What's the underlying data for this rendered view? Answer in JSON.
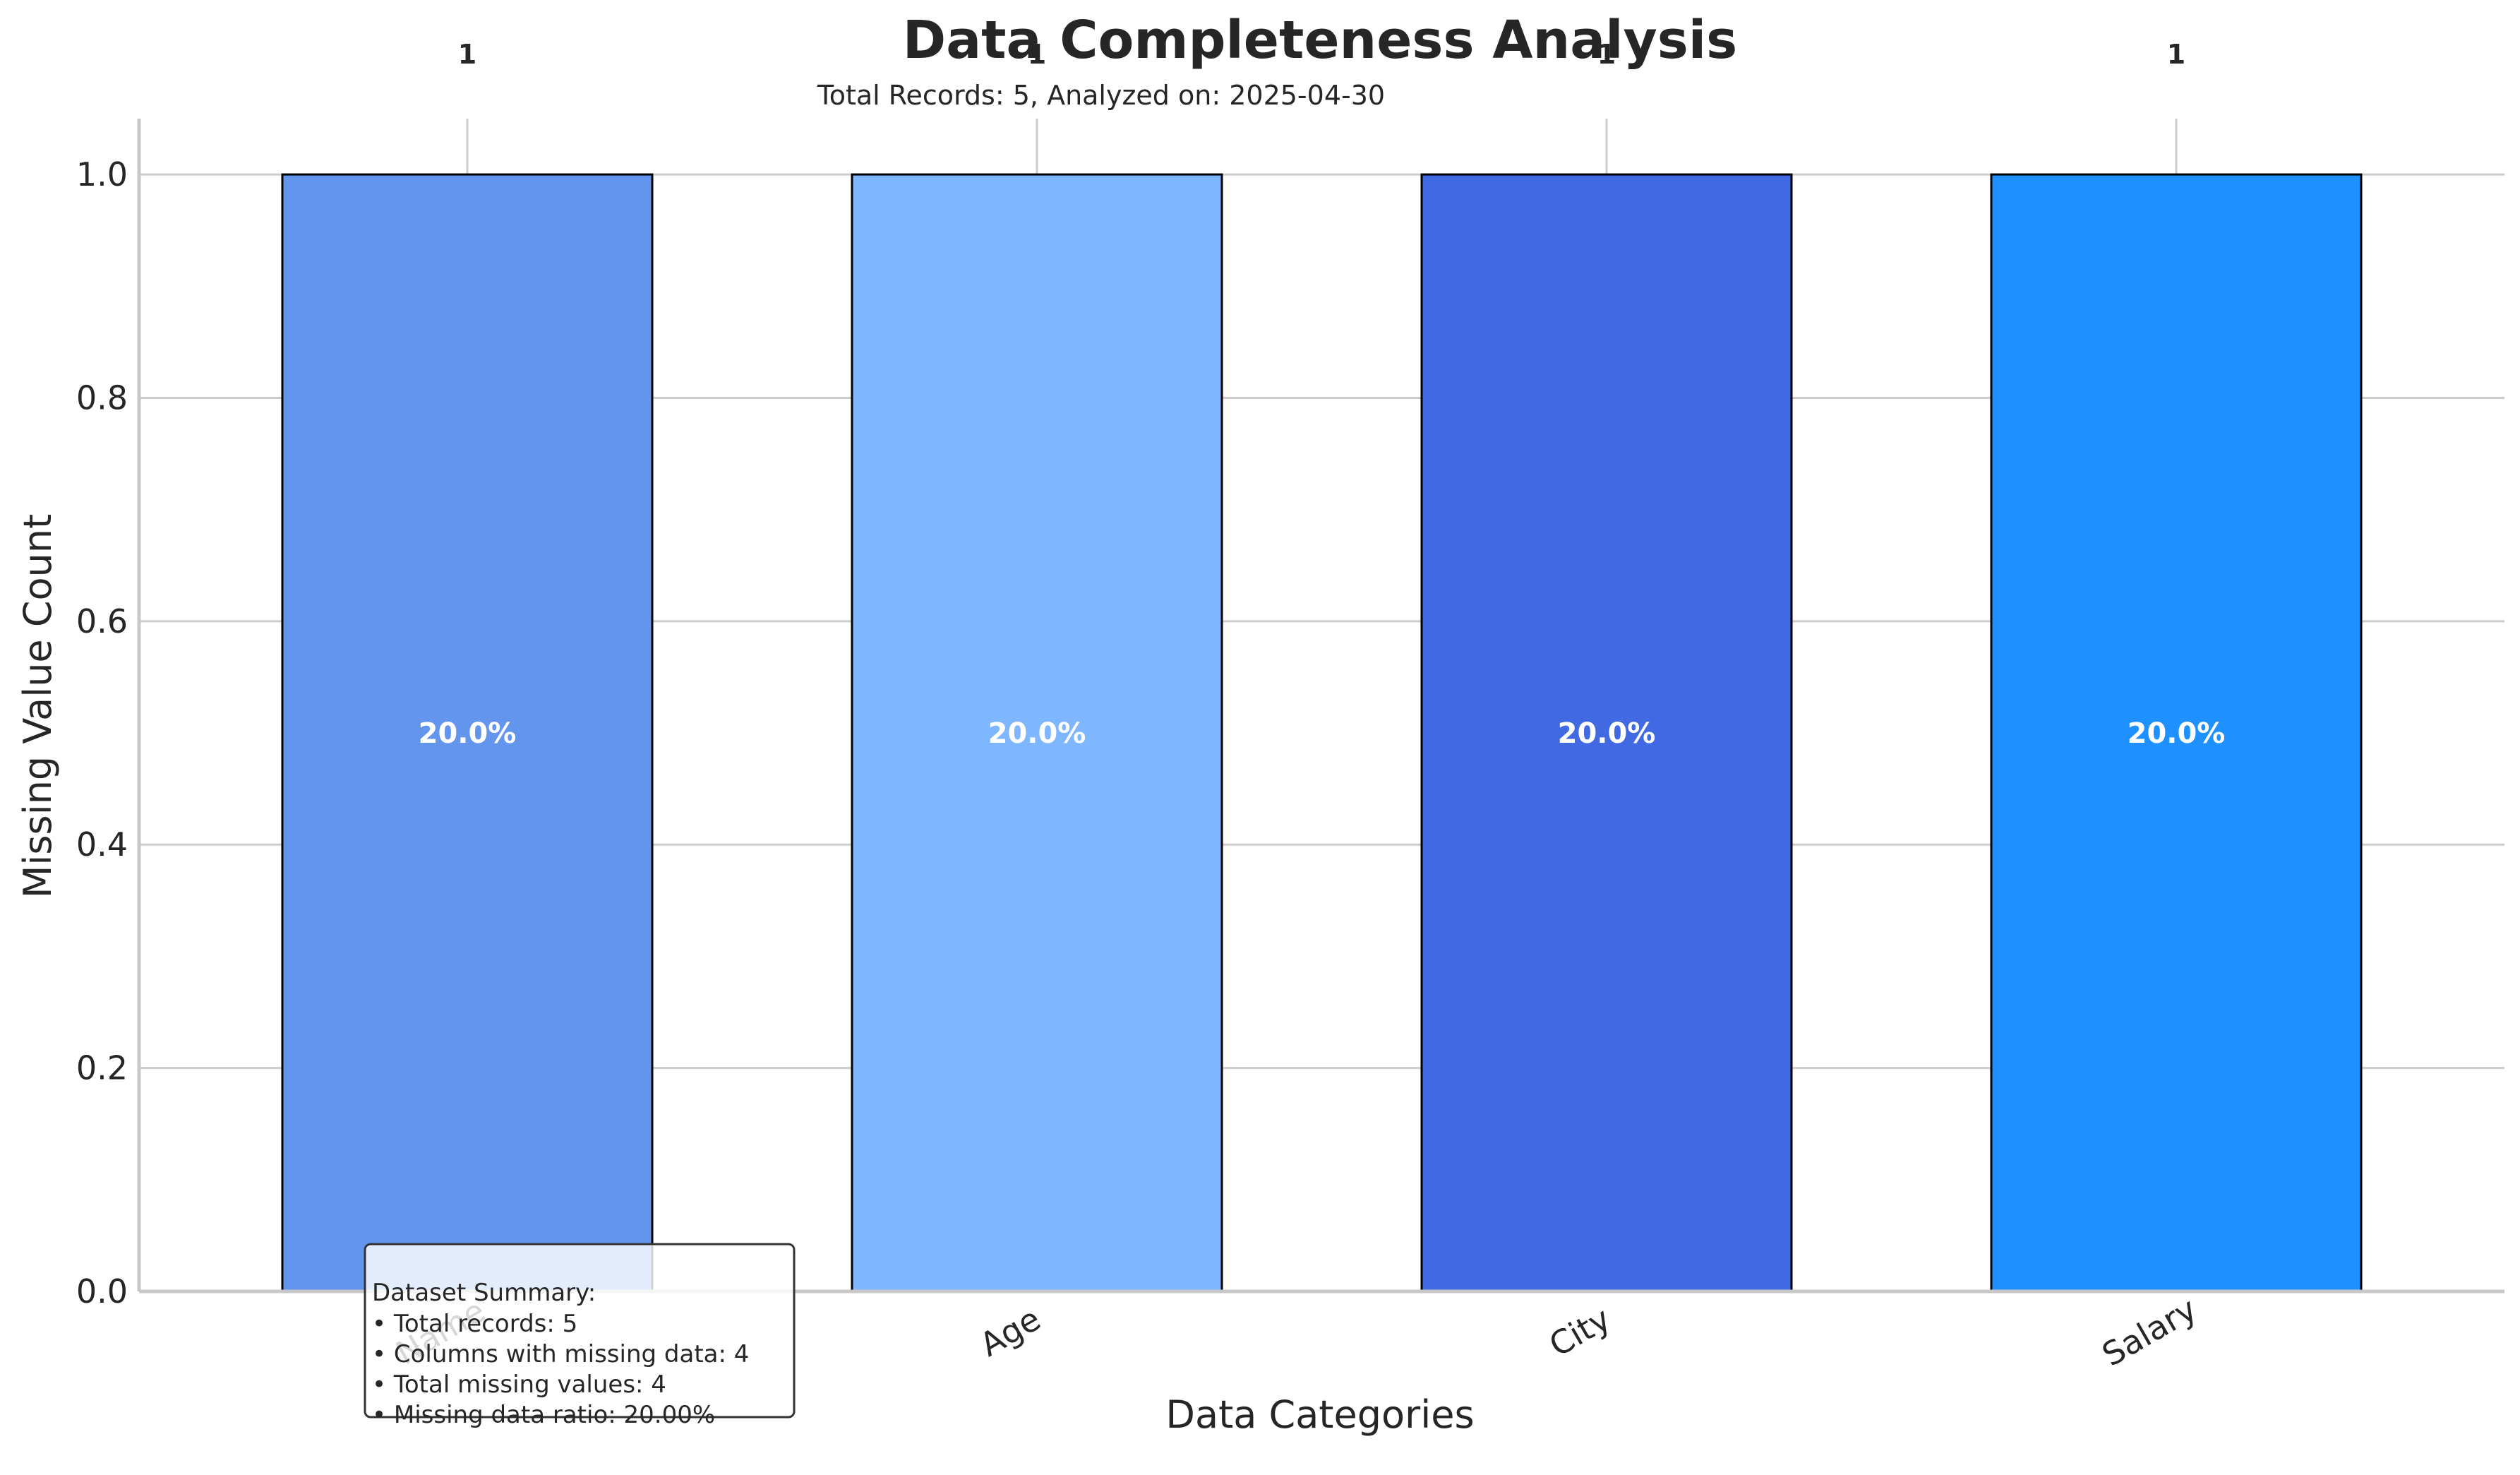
{
  "chart_data": {
    "type": "bar",
    "title": "Data Completeness Analysis",
    "subtitle": "Total Records: 5, Analyzed on: 2025-04-30",
    "xlabel": "Data Categories",
    "ylabel": "Missing Value Count",
    "categories": [
      "Name",
      "Age",
      "City",
      "Salary"
    ],
    "values": [
      1,
      1,
      1,
      1
    ],
    "value_labels": [
      "1",
      "1",
      "1",
      "1"
    ],
    "percent_labels": [
      "20.0%",
      "20.0%",
      "20.0%",
      "20.0%"
    ],
    "bar_colors": [
      "#6495ED",
      "#7EB6FF",
      "#4169E1",
      "#1E90FF"
    ],
    "ylim": [
      0,
      1.05
    ],
    "yticks": [
      0.0,
      0.2,
      0.4,
      0.6,
      0.8,
      1.0
    ],
    "ytick_labels": [
      "0.0",
      "0.2",
      "0.4",
      "0.6",
      "0.8",
      "1.0"
    ],
    "grid": true,
    "summary_box": {
      "title": "Dataset Summary:",
      "lines": [
        "• Total records: 5",
        "• Columns with missing data: 4",
        "• Total missing values: 4",
        "• Missing data ratio: 20.00%"
      ]
    }
  },
  "colors": {
    "grid": "#cccccc",
    "axis": "#c8c8c8",
    "text": "#262626",
    "bar_edge": "#000000",
    "inner_label": "#ffffff"
  }
}
